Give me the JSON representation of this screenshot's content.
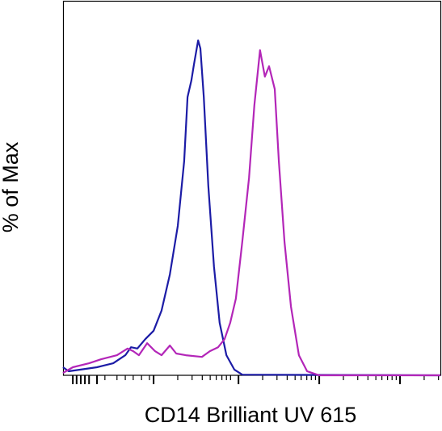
{
  "chart_data": {
    "type": "line",
    "xlabel": "CD14 Brilliant UV 615",
    "ylabel": "% of Max",
    "xlim": [
      0,
      100
    ],
    "ylim": [
      0,
      111.6
    ],
    "xticks": [
      2.6,
      3.6,
      4.7,
      5.8,
      6.9,
      9.0,
      24.0,
      46.5,
      67.9,
      89.3
    ],
    "xminorticks": [
      11.1,
      14.3,
      16.5,
      18.6,
      20.8,
      22.9,
      30.4,
      34.2,
      36.9,
      39.0,
      40.6,
      42.1,
      43.3,
      44.4,
      52.9,
      56.7,
      59.4,
      61.5,
      63.1,
      64.6,
      65.8,
      66.9,
      74.3,
      78.1,
      80.8,
      82.9,
      84.5,
      86.0,
      87.2,
      88.3,
      95.7,
      99.5
    ],
    "series": [
      {
        "color": "#1c1ca6",
        "x": [
          0,
          1.5,
          4.7,
          9.0,
          13.3,
          16.5,
          18.0,
          19.7,
          21.8,
          24.0,
          26.1,
          28.3,
          30.4,
          32.1,
          33.0,
          34.0,
          34.7,
          35.8,
          36.4,
          37.3,
          38.5,
          40.0,
          41.5,
          43.3,
          45.4,
          47.5,
          100
        ],
        "values": [
          2.4,
          1.2,
          1.7,
          2.4,
          3.6,
          6.0,
          8.4,
          8.0,
          10.8,
          13.3,
          19.3,
          30.1,
          44.6,
          63.9,
          83.1,
          88.0,
          92.8,
          100,
          97.6,
          83.1,
          56.6,
          32.5,
          15.7,
          6.0,
          1.7,
          0.2,
          0
        ]
      },
      {
        "color": "#b326b8",
        "x": [
          0,
          2.6,
          6.9,
          10.1,
          14.3,
          17.1,
          18.6,
          20.1,
          22.3,
          24.4,
          26.1,
          28.3,
          30.0,
          32.5,
          36.8,
          38.9,
          41.1,
          42.8,
          44.3,
          45.8,
          47.5,
          49.3,
          50.7,
          52.2,
          53.5,
          54.6,
          56.1,
          57.2,
          58.7,
          60.4,
          62.5,
          64.7,
          67.9,
          100
        ],
        "values": [
          0.7,
          2.4,
          3.6,
          4.8,
          6.0,
          8.0,
          7.2,
          6.0,
          9.6,
          7.2,
          6.0,
          8.9,
          6.5,
          6.0,
          5.5,
          7.2,
          8.4,
          10.8,
          15.7,
          22.9,
          39.8,
          59.0,
          80.7,
          97.1,
          89.2,
          92.3,
          85.5,
          63.9,
          39.8,
          20.5,
          6.0,
          1.2,
          0,
          0
        ]
      }
    ]
  }
}
